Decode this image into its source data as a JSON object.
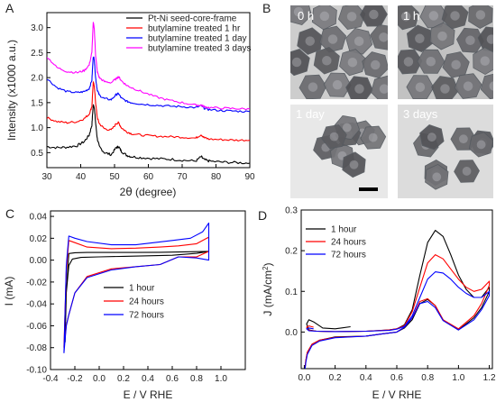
{
  "panel_labels": {
    "a": "A",
    "b": "B",
    "c": "C",
    "d": "D"
  },
  "micrograph_labels": [
    "0 h",
    "1 h",
    "1 day",
    "3 days"
  ],
  "colors": {
    "black": "#000000",
    "red": "#ff0000",
    "blue": "#0000ff",
    "magenta": "#ff00ff"
  },
  "chart_data": [
    {
      "id": "A",
      "type": "line",
      "xlabel_parts": [
        "2",
        "θ",
        " (degree)"
      ],
      "ylabel": "Intensity (x1000 a.u.)",
      "xlim": [
        30,
        90
      ],
      "ylim": [
        0.2,
        3.3
      ],
      "xticks": [
        30,
        40,
        50,
        60,
        70,
        80,
        90
      ],
      "yticks": [
        0.5,
        1.0,
        1.5,
        2.0,
        2.5,
        3.0
      ],
      "ytick_labels": [
        "0.5",
        "1.0",
        "1.5",
        "2.0",
        "2.5",
        "3.0"
      ],
      "legend_position": "top-right",
      "grid": false,
      "series": [
        {
          "name": "Pt-Ni seed-core-frame",
          "color": "#000000",
          "noise": 0.025,
          "x": [
            30,
            33,
            36,
            39,
            41,
            42.5,
            43.3,
            43.7,
            44.0,
            44.4,
            44.9,
            45.5,
            47,
            49,
            50.5,
            51.2,
            52,
            53.5,
            55,
            58,
            62,
            66,
            70,
            74,
            75.6,
            76.5,
            78,
            82,
            86,
            90
          ],
          "y": [
            0.62,
            0.6,
            0.61,
            0.64,
            0.72,
            0.85,
            1.05,
            1.45,
            1.42,
            1.1,
            0.78,
            0.62,
            0.5,
            0.46,
            0.6,
            0.62,
            0.53,
            0.45,
            0.42,
            0.4,
            0.38,
            0.37,
            0.35,
            0.33,
            0.42,
            0.36,
            0.33,
            0.31,
            0.3,
            0.29
          ]
        },
        {
          "name": "butylamine treated 1 hr",
          "color": "#ff0000",
          "noise": 0.02,
          "x": [
            30,
            33,
            36,
            39,
            41,
            42.5,
            43.3,
            43.7,
            44.0,
            44.4,
            44.9,
            45.5,
            47,
            49,
            50.5,
            51.2,
            52,
            53.5,
            55,
            58,
            62,
            66,
            70,
            74,
            75.6,
            76.5,
            78,
            82,
            86,
            90
          ],
          "y": [
            1.2,
            1.12,
            1.1,
            1.12,
            1.18,
            1.27,
            1.42,
            1.9,
            1.85,
            1.5,
            1.2,
            1.08,
            0.98,
            0.95,
            1.08,
            1.1,
            1.0,
            0.92,
            0.88,
            0.85,
            0.83,
            0.82,
            0.81,
            0.79,
            0.86,
            0.8,
            0.77,
            0.76,
            0.75,
            0.75
          ]
        },
        {
          "name": "butylamine treated 1 day",
          "color": "#0000ff",
          "noise": 0.02,
          "x": [
            30,
            33,
            36,
            39,
            41,
            42.5,
            43.3,
            43.7,
            44.0,
            44.4,
            44.9,
            45.5,
            47,
            49,
            50.5,
            51.2,
            52,
            53.5,
            55,
            58,
            62,
            66,
            70,
            74,
            75.6,
            76.5,
            78,
            82,
            86,
            90
          ],
          "y": [
            1.98,
            1.8,
            1.72,
            1.7,
            1.72,
            1.78,
            1.95,
            2.42,
            2.38,
            2.0,
            1.75,
            1.65,
            1.58,
            1.56,
            1.66,
            1.68,
            1.59,
            1.53,
            1.5,
            1.47,
            1.45,
            1.43,
            1.42,
            1.4,
            1.44,
            1.39,
            1.36,
            1.34,
            1.33,
            1.32
          ]
        },
        {
          "name": "butylamine treated 3 days",
          "color": "#ff00ff",
          "noise": 0.02,
          "x": [
            30,
            33,
            36,
            39,
            41,
            42.5,
            43.3,
            43.7,
            44.0,
            44.4,
            44.9,
            45.5,
            47,
            49,
            50.5,
            51.2,
            52,
            53.5,
            55,
            58,
            62,
            66,
            70,
            74,
            75.6,
            76.5,
            78,
            82,
            86,
            90
          ],
          "y": [
            2.42,
            2.2,
            2.12,
            2.1,
            2.14,
            2.25,
            2.5,
            3.1,
            3.0,
            2.45,
            2.12,
            2.0,
            1.92,
            1.9,
            1.98,
            2.02,
            1.94,
            1.85,
            1.8,
            1.72,
            1.62,
            1.55,
            1.5,
            1.45,
            1.45,
            1.42,
            1.4,
            1.39,
            1.38,
            1.37
          ]
        }
      ]
    },
    {
      "id": "C",
      "type": "line",
      "xlabel": "E / V RHE",
      "ylabel": "I (mA)",
      "xlim": [
        -0.4,
        1.2
      ],
      "ylim": [
        -0.1,
        0.045
      ],
      "xticks": [
        -0.4,
        -0.2,
        0.0,
        0.2,
        0.4,
        0.6,
        0.8,
        1.0
      ],
      "xtick_labels": [
        "-0.4",
        "-0.2",
        "0.0",
        "0.2",
        "0.4",
        "0.6",
        "0.8",
        "1.0"
      ],
      "yticks": [
        -0.1,
        -0.08,
        -0.06,
        -0.04,
        -0.02,
        0.0,
        0.02,
        0.04
      ],
      "ytick_labels": [
        "-0.10",
        "-0.08",
        "-0.06",
        "-0.04",
        "-0.02",
        "0.00",
        "0.02",
        "0.04"
      ],
      "legend_position": "center",
      "grid": false,
      "series": [
        {
          "name": "1 hour",
          "color": "#000000",
          "x": [
            -0.28,
            -0.27,
            -0.25,
            -0.2,
            -0.1,
            0.1,
            0.3,
            0.5,
            0.7,
            0.9,
            0.9,
            0.8,
            0.6,
            0.4,
            0.2,
            0.0,
            -0.15,
            -0.22,
            -0.25,
            -0.27,
            -0.28
          ],
          "y": [
            -0.075,
            -0.03,
            0.006,
            0.0068,
            0.007,
            0.007,
            0.007,
            0.0072,
            0.0076,
            0.008,
            0.008,
            0.0062,
            0.0045,
            0.004,
            0.0035,
            0.003,
            0.0025,
            0.001,
            -0.005,
            -0.03,
            -0.075
          ]
        },
        {
          "name": "24 hours",
          "color": "#ff0000",
          "x": [
            -0.29,
            -0.27,
            -0.25,
            -0.2,
            -0.1,
            0.1,
            0.3,
            0.5,
            0.65,
            0.8,
            0.9,
            0.9,
            0.8,
            0.65,
            0.5,
            0.3,
            0.1,
            -0.1,
            -0.2,
            -0.25,
            -0.27,
            -0.29
          ],
          "y": [
            -0.08,
            -0.01,
            0.018,
            0.016,
            0.012,
            0.0105,
            0.011,
            0.012,
            0.013,
            0.015,
            0.021,
            0.008,
            0.003,
            0.003,
            -0.004,
            -0.006,
            -0.008,
            -0.015,
            -0.03,
            -0.05,
            -0.06,
            -0.08
          ]
        },
        {
          "name": "72 hours",
          "color": "#0000ff",
          "x": [
            -0.29,
            -0.27,
            -0.25,
            -0.2,
            -0.1,
            0.1,
            0.3,
            0.45,
            0.6,
            0.75,
            0.85,
            0.9,
            0.9,
            0.8,
            0.65,
            0.5,
            0.3,
            0.1,
            -0.1,
            -0.2,
            -0.25,
            -0.27,
            -0.29
          ],
          "y": [
            -0.085,
            -0.005,
            0.022,
            0.02,
            0.017,
            0.014,
            0.014,
            0.016,
            0.018,
            0.02,
            0.026,
            0.034,
            0.0,
            0.002,
            0.003,
            -0.004,
            -0.006,
            -0.009,
            -0.016,
            -0.03,
            -0.05,
            -0.06,
            -0.085
          ]
        }
      ]
    },
    {
      "id": "D",
      "type": "line",
      "xlabel": "E / V RHE",
      "ylabel_parts": [
        "J (mA/cm",
        "2",
        ")"
      ],
      "xlim": [
        -0.02,
        1.22
      ],
      "ylim": [
        -0.09,
        0.3
      ],
      "xticks": [
        0.0,
        0.2,
        0.4,
        0.6,
        0.8,
        1.0,
        1.2
      ],
      "xtick_labels": [
        "0.0",
        "0.2",
        "0.4",
        "0.6",
        "0.8",
        "1.0",
        "1.2"
      ],
      "yticks": [
        0.0,
        0.1,
        0.2,
        0.3
      ],
      "ytick_labels": [
        "0.0",
        "0.1",
        "0.2",
        "0.3"
      ],
      "legend_position": "top-left",
      "grid": false,
      "series": [
        {
          "name": "1 hour",
          "color": "#000000",
          "x": [
            0.3,
            0.2,
            0.12,
            0.06,
            0.03,
            0.015,
            0.03,
            0.08,
            0.2,
            0.4,
            0.55,
            0.6,
            0.65,
            0.7,
            0.75,
            0.8,
            0.85,
            0.9,
            0.95,
            1.0,
            1.05,
            1.1,
            1.15,
            1.2,
            1.2,
            1.15,
            1.1,
            1.0,
            0.9,
            0.85,
            0.8,
            0.75,
            0.7,
            0.65,
            0.6,
            0.5,
            0.4,
            0.2,
            0.1,
            0.05,
            0.02,
            0.01,
            0.005
          ],
          "y": [
            0.013,
            0.008,
            0.01,
            0.025,
            0.03,
            0.02,
            0.005,
            0.002,
            0.001,
            0.002,
            0.005,
            0.008,
            0.018,
            0.055,
            0.14,
            0.22,
            0.25,
            0.235,
            0.19,
            0.14,
            0.105,
            0.085,
            0.085,
            0.11,
            0.1,
            0.06,
            0.035,
            0.005,
            0.03,
            0.065,
            0.08,
            0.07,
            0.03,
            0.01,
            0.0,
            -0.005,
            -0.01,
            -0.012,
            -0.02,
            -0.03,
            -0.05,
            -0.07,
            -0.09
          ]
        },
        {
          "name": "24 hours",
          "color": "#ff0000",
          "x": [
            0.06,
            0.03,
            0.015,
            0.03,
            0.08,
            0.2,
            0.4,
            0.55,
            0.6,
            0.65,
            0.7,
            0.75,
            0.8,
            0.85,
            0.9,
            0.95,
            1.0,
            1.05,
            1.1,
            1.15,
            1.2,
            1.2,
            1.15,
            1.1,
            1.0,
            0.9,
            0.85,
            0.8,
            0.75,
            0.7,
            0.65,
            0.6,
            0.5,
            0.4,
            0.2,
            0.1,
            0.05,
            0.02,
            0.01,
            0.005
          ],
          "y": [
            0.012,
            0.015,
            0.012,
            0.004,
            0.002,
            0.001,
            0.002,
            0.005,
            0.008,
            0.016,
            0.05,
            0.11,
            0.17,
            0.19,
            0.18,
            0.155,
            0.13,
            0.11,
            0.1,
            0.105,
            0.125,
            0.115,
            0.07,
            0.04,
            0.008,
            0.03,
            0.065,
            0.082,
            0.075,
            0.035,
            0.012,
            0.0,
            -0.005,
            -0.01,
            -0.013,
            -0.02,
            -0.03,
            -0.05,
            -0.07,
            -0.085
          ]
        },
        {
          "name": "72 hours",
          "color": "#0000ff",
          "x": [
            0.06,
            0.03,
            0.015,
            0.03,
            0.08,
            0.2,
            0.4,
            0.55,
            0.6,
            0.65,
            0.7,
            0.75,
            0.8,
            0.85,
            0.9,
            0.95,
            1.0,
            1.05,
            1.1,
            1.15,
            1.2,
            1.2,
            1.15,
            1.1,
            1.0,
            0.9,
            0.85,
            0.8,
            0.75,
            0.7,
            0.65,
            0.6,
            0.5,
            0.4,
            0.2,
            0.1,
            0.05,
            0.02,
            0.01,
            0.005
          ],
          "y": [
            0.008,
            0.01,
            0.008,
            0.003,
            0.002,
            0.001,
            0.002,
            0.004,
            0.007,
            0.014,
            0.04,
            0.085,
            0.13,
            0.148,
            0.145,
            0.13,
            0.11,
            0.095,
            0.085,
            0.085,
            0.1,
            0.09,
            0.055,
            0.03,
            0.005,
            0.028,
            0.06,
            0.075,
            0.07,
            0.035,
            0.012,
            0.0,
            -0.005,
            -0.01,
            -0.014,
            -0.022,
            -0.033,
            -0.055,
            -0.075,
            -0.09
          ]
        }
      ]
    }
  ]
}
